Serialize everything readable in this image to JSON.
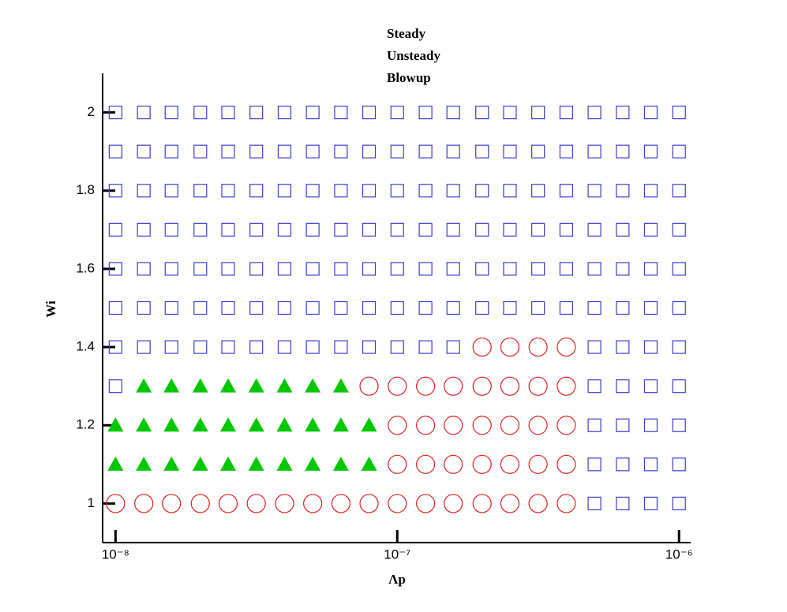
{
  "chart_data": {
    "type": "scatter",
    "xlabel": "Λp",
    "ylabel": "Wi",
    "xscale": "log",
    "legend": "top",
    "xlim": [
      9e-09,
      1.1e-06
    ],
    "xticks": [
      {
        "value": 1e-08,
        "label": "10⁻⁸"
      },
      {
        "value": 1e-07,
        "label": "10⁻⁷"
      },
      {
        "value": 1e-06,
        "label": "10⁻⁶"
      }
    ],
    "ylim": [
      0.9,
      2.1
    ],
    "yticks": [
      1,
      1.2,
      1.4,
      1.6,
      1.8,
      2
    ],
    "series": [
      {
        "name": "Steady",
        "color": "#3c3cc8",
        "marker": "square",
        "x": [
          1e-08,
          1.26e-08,
          1.58e-08,
          2e-08,
          2.51e-08,
          3.16e-08,
          3.98e-08,
          5.01e-08,
          6.31e-08,
          7.94e-08,
          1e-07,
          1.26e-07,
          1.58e-07,
          2e-07,
          2.51e-07,
          3.16e-07,
          3.98e-07,
          5.01e-07,
          6.31e-07,
          7.94e-07,
          1e-06,
          1e-08,
          1.26e-08,
          1.58e-08,
          2e-08,
          2.51e-08,
          3.16e-08,
          3.98e-08,
          5.01e-08,
          6.31e-08,
          7.94e-08,
          1e-07,
          1.26e-07,
          1.58e-07,
          2e-07,
          2.51e-07,
          3.16e-07,
          3.98e-07,
          5.01e-07,
          6.31e-07,
          7.94e-07,
          1e-06,
          1e-08,
          1.26e-08,
          1.58e-08,
          2e-08,
          2.51e-08,
          3.16e-08,
          3.98e-08,
          5.01e-08,
          6.31e-08,
          7.94e-08,
          1e-07,
          1.26e-07,
          1.58e-07,
          2e-07,
          2.51e-07,
          3.16e-07,
          3.98e-07,
          5.01e-07,
          6.31e-07,
          7.94e-07,
          1e-06,
          1e-08,
          1.26e-08,
          1.58e-08,
          2e-08,
          2.51e-08,
          3.16e-08,
          3.98e-08,
          5.01e-08,
          6.31e-08,
          7.94e-08,
          1e-07,
          1.26e-07,
          1.58e-07,
          2e-07,
          2.51e-07,
          3.16e-07,
          3.98e-07,
          5.01e-07,
          6.31e-07,
          7.94e-07,
          1e-06,
          1e-08,
          1.26e-08,
          1.58e-08,
          2e-08,
          2.51e-08,
          3.16e-08,
          3.98e-08,
          5.01e-08,
          6.31e-08,
          7.94e-08,
          1e-07,
          1.26e-07,
          1.58e-07,
          2e-07,
          2.51e-07,
          3.16e-07,
          3.98e-07,
          5.01e-07,
          6.31e-07,
          7.94e-07,
          1e-06,
          1e-08,
          1.26e-08,
          1.58e-08,
          2e-08,
          2.51e-08,
          3.16e-08,
          3.98e-08,
          5.01e-08,
          6.31e-08,
          7.94e-08,
          1e-07,
          1.26e-07,
          1.58e-07,
          2e-07,
          2.51e-07,
          3.16e-07,
          3.98e-07,
          5.01e-07,
          6.31e-07,
          7.94e-07,
          1e-06,
          1e-08,
          1.26e-08,
          1.58e-08,
          2e-08,
          2.51e-08,
          3.16e-08,
          3.98e-08,
          5.01e-08,
          6.31e-08,
          7.94e-08,
          1e-07,
          1.26e-07,
          1.58e-07,
          5.01e-07,
          6.31e-07,
          7.94e-07,
          1e-06,
          1e-08,
          5.01e-07,
          6.31e-07,
          7.94e-07,
          1e-06,
          5.01e-07,
          6.31e-07,
          7.94e-07,
          1e-06,
          5.01e-07,
          6.31e-07,
          7.94e-07,
          1e-06,
          5.01e-07,
          6.31e-07,
          7.94e-07,
          1e-06
        ],
        "values": [
          2,
          2,
          2,
          2,
          2,
          2,
          2,
          2,
          2,
          2,
          2,
          2,
          2,
          2,
          2,
          2,
          2,
          2,
          2,
          2,
          2,
          1.9,
          1.9,
          1.9,
          1.9,
          1.9,
          1.9,
          1.9,
          1.9,
          1.9,
          1.9,
          1.9,
          1.9,
          1.9,
          1.9,
          1.9,
          1.9,
          1.9,
          1.9,
          1.9,
          1.9,
          1.9,
          1.8,
          1.8,
          1.8,
          1.8,
          1.8,
          1.8,
          1.8,
          1.8,
          1.8,
          1.8,
          1.8,
          1.8,
          1.8,
          1.8,
          1.8,
          1.8,
          1.8,
          1.8,
          1.8,
          1.8,
          1.8,
          1.7,
          1.7,
          1.7,
          1.7,
          1.7,
          1.7,
          1.7,
          1.7,
          1.7,
          1.7,
          1.7,
          1.7,
          1.7,
          1.7,
          1.7,
          1.7,
          1.7,
          1.7,
          1.7,
          1.7,
          1.7,
          1.6,
          1.6,
          1.6,
          1.6,
          1.6,
          1.6,
          1.6,
          1.6,
          1.6,
          1.6,
          1.6,
          1.6,
          1.6,
          1.6,
          1.6,
          1.6,
          1.6,
          1.6,
          1.6,
          1.6,
          1.6,
          1.5,
          1.5,
          1.5,
          1.5,
          1.5,
          1.5,
          1.5,
          1.5,
          1.5,
          1.5,
          1.5,
          1.5,
          1.5,
          1.5,
          1.5,
          1.5,
          1.5,
          1.5,
          1.5,
          1.5,
          1.5,
          1.4,
          1.4,
          1.4,
          1.4,
          1.4,
          1.4,
          1.4,
          1.4,
          1.4,
          1.4,
          1.4,
          1.4,
          1.4,
          1.4,
          1.4,
          1.4,
          1.4,
          1.3,
          1.3,
          1.3,
          1.3,
          1.3,
          1.2,
          1.2,
          1.2,
          1.2,
          1.1,
          1.1,
          1.1,
          1.1,
          1,
          1,
          1,
          1
        ]
      },
      {
        "name": "Unsteady",
        "color": "#e02020",
        "marker": "circle",
        "x": [
          2e-07,
          2.51e-07,
          3.16e-07,
          3.98e-07,
          7.94e-08,
          1e-07,
          1.26e-07,
          1.58e-07,
          2e-07,
          2.51e-07,
          3.16e-07,
          3.98e-07,
          1e-07,
          1.26e-07,
          1.58e-07,
          2e-07,
          2.51e-07,
          3.16e-07,
          3.98e-07,
          1e-07,
          1.26e-07,
          1.58e-07,
          2e-07,
          2.51e-07,
          3.16e-07,
          3.98e-07,
          1e-08,
          1.26e-08,
          1.58e-08,
          2e-08,
          2.51e-08,
          3.16e-08,
          3.98e-08,
          5.01e-08,
          6.31e-08,
          7.94e-08,
          1e-07,
          1.26e-07,
          1.58e-07,
          2e-07,
          2.51e-07,
          3.16e-07,
          3.98e-07
        ],
        "values": [
          1.4,
          1.4,
          1.4,
          1.4,
          1.3,
          1.3,
          1.3,
          1.3,
          1.3,
          1.3,
          1.3,
          1.3,
          1.2,
          1.2,
          1.2,
          1.2,
          1.2,
          1.2,
          1.2,
          1.1,
          1.1,
          1.1,
          1.1,
          1.1,
          1.1,
          1.1,
          1,
          1,
          1,
          1,
          1,
          1,
          1,
          1,
          1,
          1,
          1,
          1,
          1,
          1,
          1,
          1,
          1
        ]
      },
      {
        "name": "Blowup",
        "color": "#00c800",
        "marker": "triangle",
        "x": [
          1.26e-08,
          1.58e-08,
          2e-08,
          2.51e-08,
          3.16e-08,
          3.98e-08,
          5.01e-08,
          6.31e-08,
          1e-08,
          1.26e-08,
          1.58e-08,
          2e-08,
          2.51e-08,
          3.16e-08,
          3.98e-08,
          5.01e-08,
          6.31e-08,
          7.94e-08,
          1e-08,
          1.26e-08,
          1.58e-08,
          2e-08,
          2.51e-08,
          3.16e-08,
          3.98e-08,
          5.01e-08,
          6.31e-08,
          7.94e-08
        ],
        "values": [
          1.3,
          1.3,
          1.3,
          1.3,
          1.3,
          1.3,
          1.3,
          1.3,
          1.2,
          1.2,
          1.2,
          1.2,
          1.2,
          1.2,
          1.2,
          1.2,
          1.2,
          1.2,
          1.1,
          1.1,
          1.1,
          1.1,
          1.1,
          1.1,
          1.1,
          1.1,
          1.1,
          1.1
        ]
      }
    ]
  }
}
